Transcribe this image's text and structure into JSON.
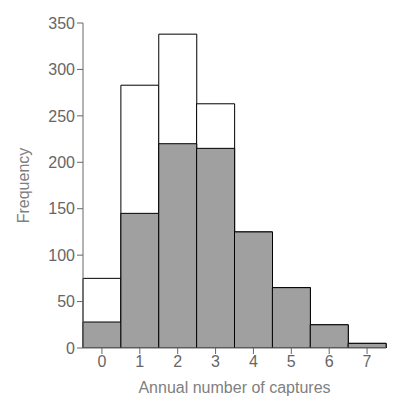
{
  "chart_data": {
    "type": "bar",
    "xlabel": "Annual number of captures",
    "ylabel": "Frequency",
    "categories": [
      0,
      1,
      2,
      3,
      4,
      5,
      6,
      7
    ],
    "series": [
      {
        "color": "#ffffff",
        "values": [
          75,
          283,
          338,
          263,
          125,
          65,
          25,
          5
        ]
      },
      {
        "color": "#a0a0a0",
        "values": [
          28,
          145,
          220,
          215,
          125,
          65,
          25,
          5
        ]
      }
    ],
    "ylim": [
      0,
      350
    ],
    "yticks": [
      0,
      50,
      100,
      150,
      200,
      250,
      300,
      350
    ],
    "grid": false,
    "stacked": false
  }
}
